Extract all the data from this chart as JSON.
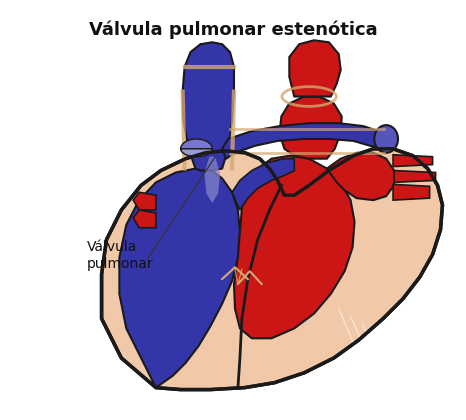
{
  "title": "Válvula pulmonar estenótica",
  "label_line1": "Válvula",
  "label_line2": "pulmonar",
  "title_fontsize": 13,
  "label_fontsize": 10,
  "bg_color": "#ffffff",
  "flesh": "#f2c9a8",
  "red": "#cc1515",
  "red_dark": "#aa1010",
  "blue": "#3535aa",
  "blue_mid": "#5555bb",
  "outline": "#1a1a1a",
  "gold": "#d4a870",
  "valve_blue": "#7777cc",
  "fig_width": 4.66,
  "fig_height": 4.2,
  "dpi": 100
}
